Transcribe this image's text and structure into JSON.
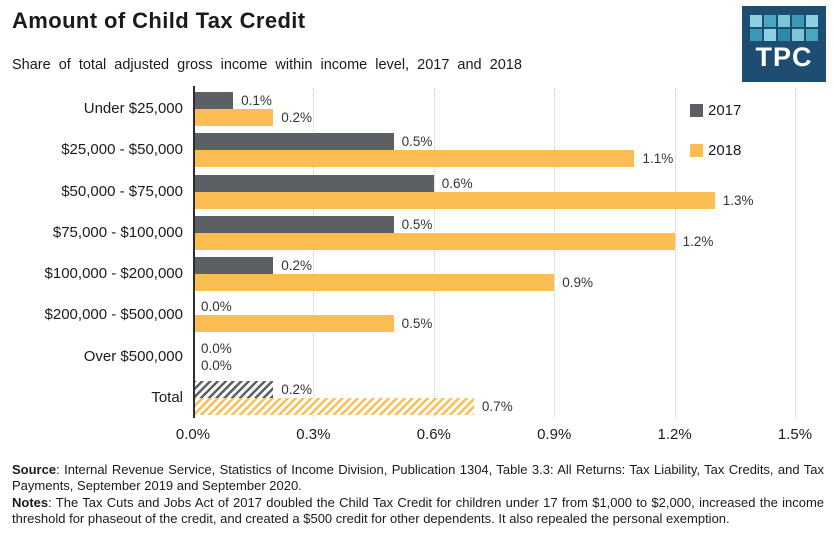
{
  "header": {
    "title": "Amount of Child Tax Credit",
    "subtitle": "Share of total adjusted gross income within income level, 2017 and 2018"
  },
  "logo": {
    "text": "TPC",
    "bg_color": "#1E4D72",
    "tile_colors": [
      "#8CD1E2",
      "#4AA5C0",
      "#7CC5D8",
      "#3C99B5",
      "#8CD1E2",
      "#3C99B5",
      "#8CD1E2",
      "#2E89A6",
      "#7CC5D8",
      "#4AA5C0"
    ]
  },
  "chart_data": {
    "type": "bar",
    "orientation": "horizontal",
    "title": "Amount of Child Tax Credit",
    "subtitle": "Share of total adjusted gross income within income level, 2017 and 2018",
    "categories": [
      "Under $25,000",
      "$25,000 - $50,000",
      "$50,000 - $75,000",
      "$75,000 - $100,000",
      "$100,000 - $200,000",
      "$200,000 - $500,000",
      "Over $500,000",
      "Total"
    ],
    "series": [
      {
        "name": "2017",
        "color": "#5C5F64",
        "values": [
          0.1,
          0.5,
          0.6,
          0.5,
          0.2,
          0.0,
          0.0,
          0.2
        ],
        "labels": [
          "0.1%",
          "0.5%",
          "0.6%",
          "0.5%",
          "0.2%",
          "0.0%",
          "0.0%",
          "0.2%"
        ]
      },
      {
        "name": "2018",
        "color": "#FCBE53",
        "values": [
          0.2,
          1.1,
          1.3,
          1.2,
          0.9,
          0.5,
          0.0,
          0.7
        ],
        "labels": [
          "0.2%",
          "1.1%",
          "1.3%",
          "1.2%",
          "0.9%",
          "0.5%",
          "0.0%",
          "0.7%"
        ]
      }
    ],
    "hatched_category": "Total",
    "x_ticks": [
      "0.0%",
      "0.3%",
      "0.6%",
      "0.9%",
      "1.2%",
      "1.5%"
    ],
    "xlim": [
      0,
      1.5
    ],
    "xlabel": "",
    "ylabel": "",
    "grid": "dotted-vertical",
    "legend_position": "top-right"
  },
  "footer": {
    "source_label": "Source",
    "source_text": ": Internal Revenue Service, Statistics of Income Division, Publication 1304, Table 3.3: All Returns: Tax Liability, Tax Credits, and Tax Payments, September 2019 and September 2020.",
    "notes_label": "Notes",
    "notes_text": ": The Tax Cuts and Jobs Act of 2017 doubled the Child Tax Credit for children under 17 from $1,000 to $2,000, increased the income threshold for phaseout of the credit, and created a $500 credit for other dependents. It also repealed the personal exemption."
  }
}
